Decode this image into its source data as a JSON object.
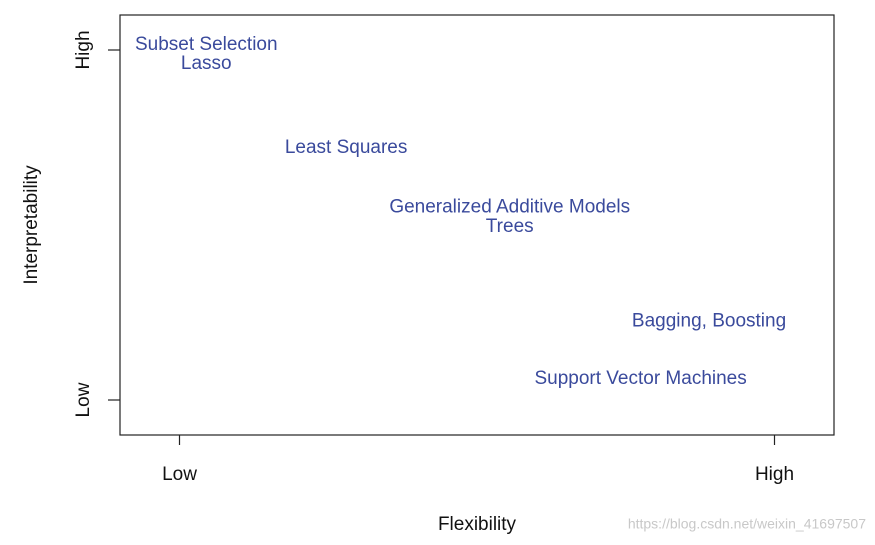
{
  "chart_data": {
    "type": "scatter",
    "xlabel": "Flexibility",
    "ylabel": "Interpretability",
    "labels": [
      "Subset Selection",
      "Lasso",
      "Least Squares",
      "Generalized Additive Models",
      "Trees",
      "Bagging, Boosting",
      "Support Vector Machines"
    ],
    "x": [
      0.45,
      0.45,
      2.8,
      5.55,
      5.55,
      8.9,
      7.75
    ],
    "y": [
      10.15,
      9.6,
      7.2,
      5.5,
      4.95,
      2.25,
      0.6
    ],
    "color": "#3a4a9c",
    "xlim": [
      -1,
      11
    ],
    "ylim": [
      -1,
      11
    ],
    "xticks": [
      {
        "value": 0,
        "label": "Low"
      },
      {
        "value": 10,
        "label": "High"
      }
    ],
    "yticks": [
      {
        "value": 0,
        "label": "Low"
      },
      {
        "value": 10,
        "label": "High"
      }
    ],
    "watermark": "https://blog.csdn.net/weixin_41697507"
  }
}
